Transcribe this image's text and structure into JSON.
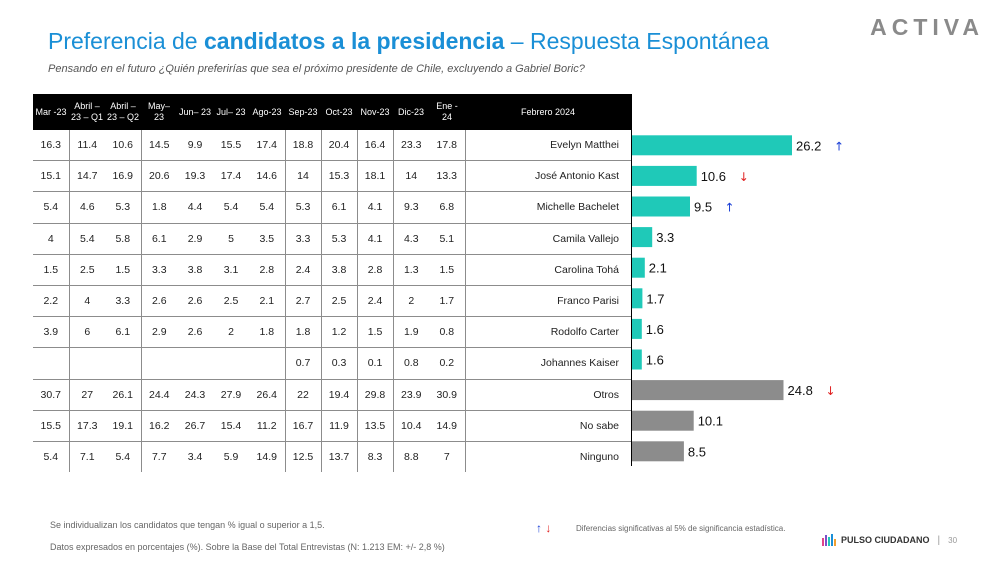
{
  "header": {
    "title_part1": "Preferencia de ",
    "title_bold": "candidatos a la presidencia",
    "title_part2": " – Respuesta Espontánea",
    "subtitle": "Pensando en el futuro ¿Quién preferirías que sea el próximo presidente de Chile, excluyendo a Gabriel Boric?",
    "brand": "ACTIVA"
  },
  "table": {
    "columns": [
      "Mar -23",
      "Abril – 23 – Q1",
      "Abril – 23 – Q2",
      "May– 23",
      "Jun– 23",
      "Jul– 23",
      "Ago-23",
      "Sep-23",
      "Oct-23",
      "Nov-23",
      "Dic-23",
      "Ene - 24",
      "Febrero 2024"
    ],
    "rows": [
      {
        "name": "Evelyn Matthei",
        "values": [
          "16.3",
          "11.4",
          "10.6",
          "14.5",
          "9.9",
          "15.5",
          "17.4",
          "18.8",
          "20.4",
          "16.4",
          "23.3",
          "17.8"
        ]
      },
      {
        "name": "José Antonio Kast",
        "values": [
          "15.1",
          "14.7",
          "16.9",
          "20.6",
          "19.3",
          "17.4",
          "14.6",
          "14",
          "15.3",
          "18.1",
          "14",
          "13.3"
        ]
      },
      {
        "name": "Michelle Bachelet",
        "values": [
          "5.4",
          "4.6",
          "5.3",
          "1.8",
          "4.4",
          "5.4",
          "5.4",
          "5.3",
          "6.1",
          "4.1",
          "9.3",
          "6.8"
        ]
      },
      {
        "name": "Camila Vallejo",
        "values": [
          "4",
          "5.4",
          "5.8",
          "6.1",
          "2.9",
          "5",
          "3.5",
          "3.3",
          "5.3",
          "4.1",
          "4.3",
          "5.1"
        ]
      },
      {
        "name": "Carolina Tohá",
        "values": [
          "1.5",
          "2.5",
          "1.5",
          "3.3",
          "3.8",
          "3.1",
          "2.8",
          "2.4",
          "3.8",
          "2.8",
          "1.3",
          "1.5"
        ]
      },
      {
        "name": "Franco Parisi",
        "values": [
          "2.2",
          "4",
          "3.3",
          "2.6",
          "2.6",
          "2.5",
          "2.1",
          "2.7",
          "2.5",
          "2.4",
          "2",
          "1.7"
        ]
      },
      {
        "name": "Rodolfo Carter",
        "values": [
          "3.9",
          "6",
          "6.1",
          "2.9",
          "2.6",
          "2",
          "1.8",
          "1.8",
          "1.2",
          "1.5",
          "1.9",
          "0.8"
        ]
      },
      {
        "name": "Johannes Kaiser",
        "values": [
          "",
          "",
          "",
          "",
          "",
          "",
          "",
          "0.7",
          "0.3",
          "0.1",
          "0.8",
          "0.2"
        ]
      },
      {
        "name": "Otros",
        "values": [
          "30.7",
          "27",
          "26.1",
          "24.4",
          "24.3",
          "27.9",
          "26.4",
          "22",
          "19.4",
          "29.8",
          "23.9",
          "30.9"
        ]
      },
      {
        "name": "No sabe",
        "values": [
          "15.5",
          "17.3",
          "19.1",
          "16.2",
          "26.7",
          "15.4",
          "11.2",
          "16.7",
          "11.9",
          "13.5",
          "10.4",
          "14.9"
        ]
      },
      {
        "name": "Ninguno",
        "values": [
          "5.4",
          "7.1",
          "5.4",
          "7.7",
          "3.4",
          "5.9",
          "14.9",
          "12.5",
          "13.7",
          "8.3",
          "8.8",
          "7"
        ]
      }
    ]
  },
  "chart_data": {
    "type": "bar",
    "orientation": "horizontal",
    "title": "Febrero 2024",
    "categories": [
      "Evelyn Matthei",
      "José Antonio Kast",
      "Michelle Bachelet",
      "Camila Vallejo",
      "Carolina Tohá",
      "Franco Parisi",
      "Rodolfo Carter",
      "Johannes Kaiser",
      "Otros",
      "No sabe",
      "Ninguno"
    ],
    "values": [
      26.2,
      10.6,
      9.5,
      3.3,
      2.1,
      1.7,
      1.6,
      1.6,
      24.8,
      10.1,
      8.5
    ],
    "bar_colors": [
      "#1fc9b8",
      "#1fc9b8",
      "#1fc9b8",
      "#1fc9b8",
      "#1fc9b8",
      "#1fc9b8",
      "#1fc9b8",
      "#1fc9b8",
      "#8c8c8c",
      "#8c8c8c",
      "#8c8c8c"
    ],
    "trend": [
      "up",
      "down",
      "up",
      "",
      "",
      "",
      "",
      "",
      "down",
      "",
      ""
    ],
    "xlim": [
      0,
      30
    ],
    "grid": false,
    "legend": "none"
  },
  "colors": {
    "title": "#1a8fd6",
    "candidate_bar": "#1fc9b8",
    "other_bar": "#8c8c8c",
    "up_arrow": "#1a3fd6",
    "down_arrow": "#e02020"
  },
  "footer": {
    "note1": "Se individualizan  los candidatos que tengan % igual o superior a 1,5.",
    "note2": "Datos expresados en porcentajes (%). Sobre la Base del Total Entrevistas (N: 1.213  EM: +/- 2,8 %)",
    "legend_up": "↑",
    "legend_down": "↓",
    "legend_text": "Diferencias  significativas  al 5% de significancia estadística.",
    "source_name": "PULSO CIUDADANO",
    "page_number": "30"
  }
}
